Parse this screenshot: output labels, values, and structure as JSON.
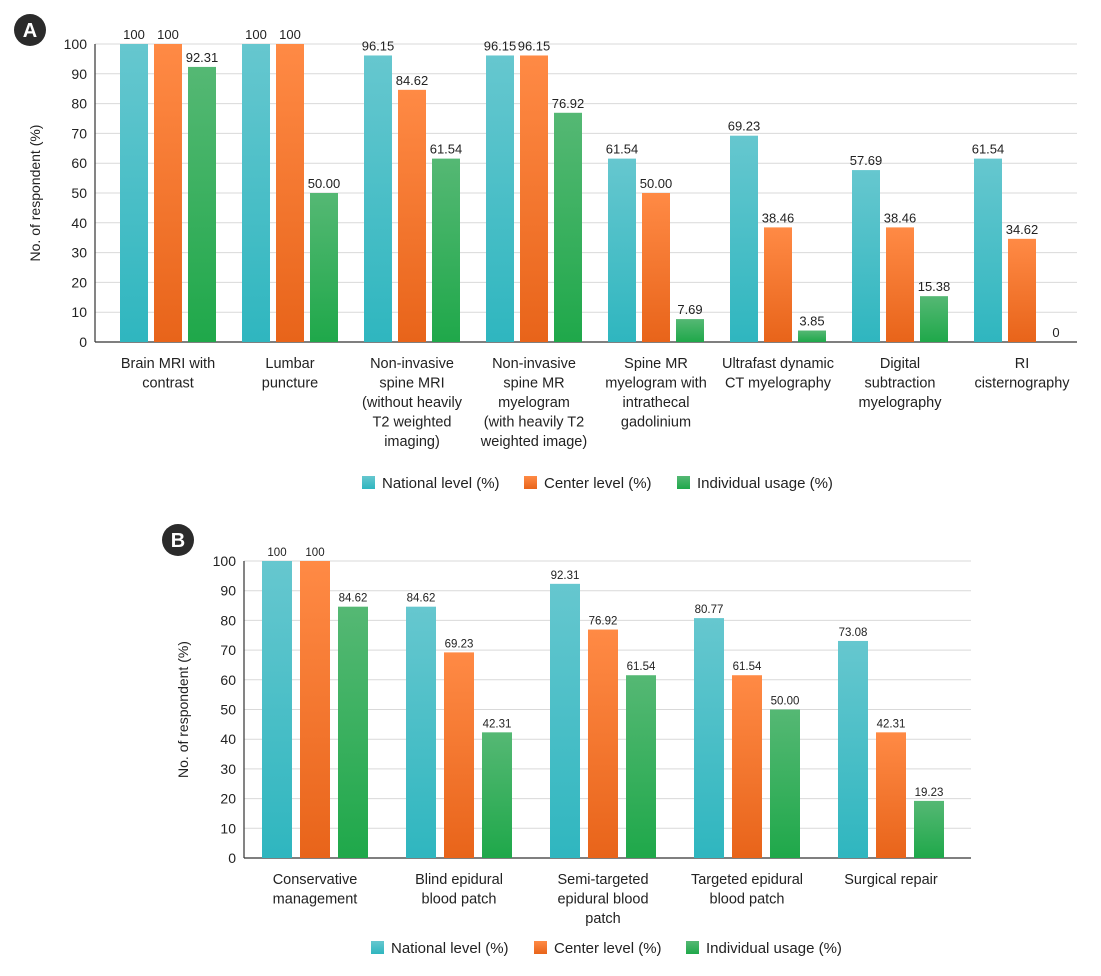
{
  "colors": {
    "national": "#43c3cc",
    "center": "#f97c2e",
    "individual": "#3cb65a",
    "grid": "#d9d9d9",
    "axis": "#333333",
    "badge": "#2b2b2b"
  },
  "chart_data": [
    {
      "panel": "A",
      "type": "bar",
      "ylabel": "No. of respondent (%)",
      "ylim": [
        0,
        100
      ],
      "yticks": [
        0,
        10,
        20,
        30,
        40,
        50,
        60,
        70,
        80,
        90,
        100
      ],
      "categories": [
        [
          "Brain MRI with",
          "contrast"
        ],
        [
          "Lumbar",
          "puncture"
        ],
        [
          "Non-invasive",
          "spine MRI",
          "(without heavily",
          "T2 weighted",
          "imaging)"
        ],
        [
          "Non-invasive",
          "spine MR",
          "myelogram",
          "(with heavily T2",
          "weighted image)"
        ],
        [
          "Spine MR",
          "myelogram with",
          "intrathecal",
          "gadolinium"
        ],
        [
          "Ultrafast dynamic",
          "CT myelography"
        ],
        [
          "Digital",
          "subtraction",
          "myelography"
        ],
        [
          "RI",
          "cisternography"
        ]
      ],
      "series": [
        {
          "name": "National level (%)",
          "key": "national",
          "values": [
            100,
            100,
            96.15,
            96.15,
            61.54,
            69.23,
            57.69,
            61.54
          ],
          "labels": [
            "100",
            "100",
            "96.15",
            "96.15",
            "61.54",
            "69.23",
            "57.69",
            "61.54"
          ]
        },
        {
          "name": "Center level (%)",
          "key": "center",
          "values": [
            100,
            100,
            84.62,
            96.15,
            50.0,
            38.46,
            38.46,
            34.62
          ],
          "labels": [
            "100",
            "100",
            "84.62",
            "96.15",
            "50.00",
            "38.46",
            "38.46",
            "34.62"
          ]
        },
        {
          "name": "Individual usage (%)",
          "key": "individual",
          "values": [
            92.31,
            50.0,
            61.54,
            76.92,
            7.69,
            3.85,
            15.38,
            0
          ],
          "labels": [
            "92.31",
            "50.00",
            "61.54",
            "76.92",
            "7.69",
            "3.85",
            "15.38",
            "0"
          ]
        }
      ],
      "legend": [
        "National level (%)",
        "Center level (%)",
        "Individual usage (%)"
      ],
      "legend_position": "bottom"
    },
    {
      "panel": "B",
      "type": "bar",
      "ylabel": "No. of respondent (%)",
      "ylim": [
        0,
        100
      ],
      "yticks": [
        0,
        10,
        20,
        30,
        40,
        50,
        60,
        70,
        80,
        90,
        100
      ],
      "categories": [
        [
          "Conservative",
          "management"
        ],
        [
          "Blind epidural",
          "blood patch"
        ],
        [
          "Semi-targeted",
          "epidural blood",
          "patch"
        ],
        [
          "Targeted epidural",
          "blood patch"
        ],
        [
          "Surgical repair"
        ]
      ],
      "series": [
        {
          "name": "National level (%)",
          "key": "national",
          "values": [
            100,
            84.62,
            92.31,
            80.77,
            73.08
          ],
          "labels": [
            "100",
            "84.62",
            "92.31",
            "80.77",
            "73.08"
          ]
        },
        {
          "name": "Center level (%)",
          "key": "center",
          "values": [
            100,
            69.23,
            76.92,
            61.54,
            42.31
          ],
          "labels": [
            "100",
            "69.23",
            "76.92",
            "61.54",
            "42.31"
          ]
        },
        {
          "name": "Individual usage (%)",
          "key": "individual",
          "values": [
            84.62,
            42.31,
            61.54,
            50.0,
            19.23
          ],
          "labels": [
            "84.62",
            "42.31",
            "61.54",
            "50.00",
            "19.23"
          ]
        }
      ],
      "legend": [
        "National level (%)",
        "Center level (%)",
        "Individual usage (%)"
      ],
      "legend_position": "bottom"
    }
  ]
}
